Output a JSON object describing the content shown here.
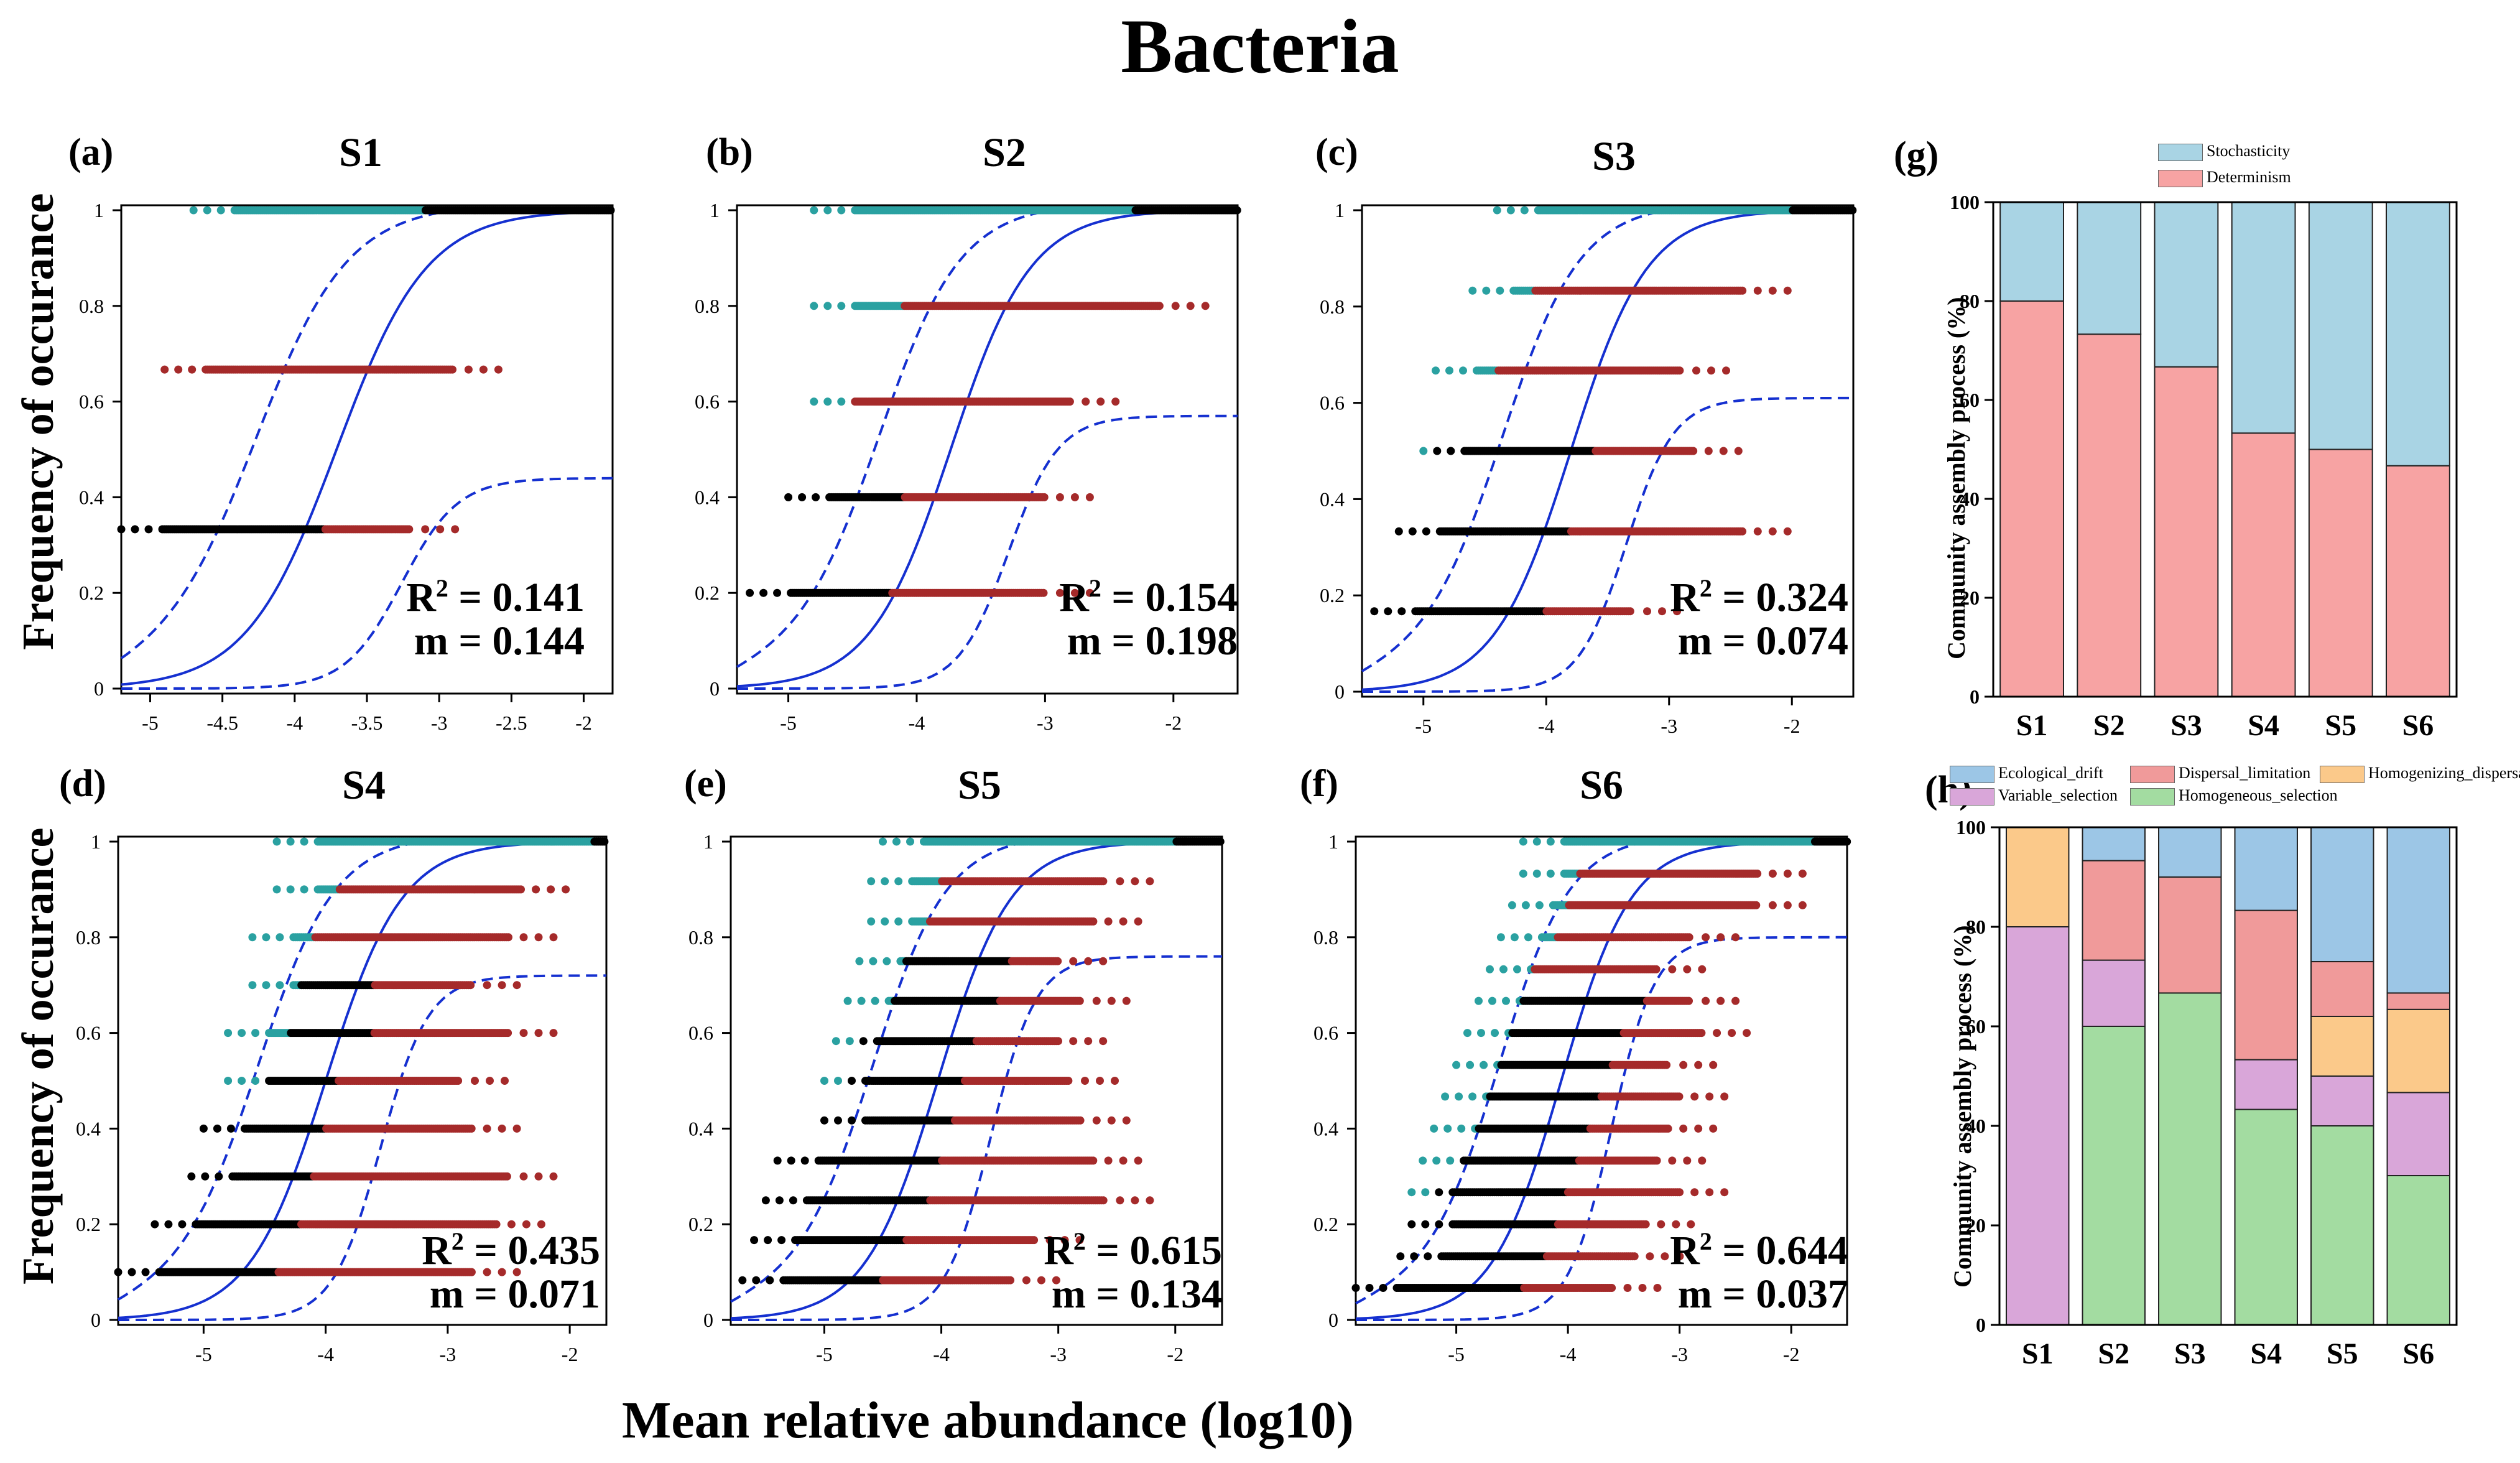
{
  "figure": {
    "title": "Bacteria",
    "shared_ylabel": "Frequency of occurance",
    "shared_xlabel": "Mean relative abundance (log10)"
  },
  "colors": {
    "above": "#2aa1a1",
    "neutral": "#000000",
    "below": "#a52a2a",
    "fit": "#1530d0"
  },
  "chart_data": [
    {
      "type": "scatter",
      "panel": "(a)",
      "title": "S1",
      "xlim": [
        -5.2,
        -1.8
      ],
      "ylim": [
        0,
        1
      ],
      "xticks": [
        -5,
        -4.5,
        -4,
        -3.5,
        -3,
        -2.5,
        -2
      ],
      "xticklabels": [
        "-5",
        "-4.5",
        "-4",
        "-3.5",
        "-3",
        "-2.5",
        "-2"
      ],
      "yticks": [
        0,
        0.2,
        0.4,
        0.6,
        0.8,
        1
      ],
      "yticklabels": [
        "0",
        "0.2",
        "0.4",
        "0.6",
        "0.8",
        "1"
      ],
      "r2_label": "R",
      "r2_text": " = 0.141",
      "m_text": "m = 0.144",
      "R2": 0.141,
      "m": 0.144,
      "dashed_lower_max": 0.44,
      "rows": [
        {
          "y": 0.333,
          "start": -5.2,
          "end": -3.2,
          "t1": -5.2,
          "t2": -3.8
        },
        {
          "y": 0.667,
          "start": -4.9,
          "end": -2.9,
          "t1": -4.9,
          "t2": -4.9
        },
        {
          "y": 1,
          "start": -4.7,
          "end": -1.8,
          "t1": -4.1,
          "t2": -4.1
        }
      ]
    },
    {
      "type": "scatter",
      "panel": "(b)",
      "title": "S2",
      "xlim": [
        -5.4,
        -1.5
      ],
      "ylim": [
        0,
        1
      ],
      "xticks": [
        -5,
        -4,
        -3,
        -2
      ],
      "xticklabels": [
        "-5",
        "-4",
        "-3",
        "-2"
      ],
      "yticks": [
        0,
        0.2,
        0.4,
        0.6,
        0.8,
        1
      ],
      "yticklabels": [
        "0",
        "0.2",
        "0.4",
        "0.6",
        "0.8",
        "1"
      ],
      "r2_label": "R",
      "r2_text": " = 0.154",
      "m_text": "m = 0.198",
      "R2": 0.154,
      "m": 0.198,
      "dashed_lower_max": 0.57,
      "rows": [
        {
          "y": 0.2,
          "start": -5.3,
          "end": -3.0,
          "t1": -5.3,
          "t2": -4.2
        },
        {
          "y": 0.4,
          "start": -5.0,
          "end": -3.0,
          "t1": -5.0,
          "t2": -4.1
        },
        {
          "y": 0.6,
          "start": -4.8,
          "end": -2.8,
          "t1": -4.5,
          "t2": -4.5
        },
        {
          "y": 0.8,
          "start": -4.8,
          "end": -2.1,
          "t1": -4.1,
          "t2": -4.1
        },
        {
          "y": 1,
          "start": -4.8,
          "end": -1.5,
          "t1": -3.3,
          "t2": -3.3
        }
      ]
    },
    {
      "type": "scatter",
      "panel": "(c)",
      "title": "S3",
      "xlim": [
        -5.5,
        -1.5
      ],
      "ylim": [
        0,
        1
      ],
      "xticks": [
        -5,
        -4,
        -3,
        -2
      ],
      "xticklabels": [
        "-5",
        "-4",
        "-3",
        "-2"
      ],
      "yticks": [
        0,
        0.2,
        0.4,
        0.6,
        0.8,
        1
      ],
      "yticklabels": [
        "0",
        "0.2",
        "0.4",
        "0.6",
        "0.8",
        "1"
      ],
      "r2_label": "R",
      "r2_text": " = 0.324",
      "m_text": "m = 0.074",
      "R2": 0.324,
      "m": 0.074,
      "dashed_lower_max": 0.61,
      "rows": [
        {
          "y": 0.167,
          "start": -5.4,
          "end": -3.3,
          "t1": -5.4,
          "t2": -4.0
        },
        {
          "y": 0.333,
          "start": -5.2,
          "end": -2.4,
          "t1": -5.2,
          "t2": -3.8
        },
        {
          "y": 0.5,
          "start": -5.0,
          "end": -2.8,
          "t1": -4.9,
          "t2": -3.6
        },
        {
          "y": 0.667,
          "start": -4.9,
          "end": -2.9,
          "t1": -4.4,
          "t2": -4.4
        },
        {
          "y": 0.833,
          "start": -4.6,
          "end": -2.4,
          "t1": -4.1,
          "t2": -4.1
        },
        {
          "y": 1,
          "start": -4.4,
          "end": -1.5,
          "t1": -3.0,
          "t2": -3.0
        }
      ]
    },
    {
      "type": "scatter",
      "panel": "(d)",
      "title": "S4",
      "xlim": [
        -5.7,
        -1.7
      ],
      "ylim": [
        0,
        1
      ],
      "xticks": [
        -5,
        -4,
        -3,
        -2
      ],
      "xticklabels": [
        "-5",
        "-4",
        "-3",
        "-2"
      ],
      "yticks": [
        0,
        0.2,
        0.4,
        0.6,
        0.8,
        1
      ],
      "yticklabels": [
        "0",
        "0.2",
        "0.4",
        "0.6",
        "0.8",
        "1"
      ],
      "r2_label": "R",
      "r2_text": " = 0.435",
      "m_text": "m = 0.071",
      "R2": 0.435,
      "m": 0.071,
      "dashed_lower_max": 0.72,
      "rows": [
        {
          "y": 0.1,
          "start": -5.7,
          "end": -2.8,
          "t1": -5.7,
          "t2": -4.4
        },
        {
          "y": 0.2,
          "start": -5.4,
          "end": -2.6,
          "t1": -5.4,
          "t2": -4.2
        },
        {
          "y": 0.3,
          "start": -5.1,
          "end": -2.5,
          "t1": -5.1,
          "t2": -4.1
        },
        {
          "y": 0.4,
          "start": -5.0,
          "end": -2.8,
          "t1": -5.0,
          "t2": -4.0
        },
        {
          "y": 0.5,
          "start": -4.8,
          "end": -2.9,
          "t1": -4.5,
          "t2": -3.9
        },
        {
          "y": 0.6,
          "start": -4.8,
          "end": -2.5,
          "t1": -4.3,
          "t2": -3.6
        },
        {
          "y": 0.7,
          "start": -4.6,
          "end": -2.8,
          "t1": -4.2,
          "t2": -3.6
        },
        {
          "y": 0.8,
          "start": -4.6,
          "end": -2.5,
          "t1": -4.1,
          "t2": -4.1
        },
        {
          "y": 0.9,
          "start": -4.4,
          "end": -2.4,
          "t1": -3.9,
          "t2": -3.9
        },
        {
          "y": 1,
          "start": -4.4,
          "end": -1.7,
          "t1": -2.8,
          "t2": -2.8
        }
      ]
    },
    {
      "type": "scatter",
      "panel": "(e)",
      "title": "S5",
      "xlim": [
        -5.8,
        -1.6
      ],
      "ylim": [
        0,
        1
      ],
      "xticks": [
        -5,
        -4,
        -3,
        -2
      ],
      "xticklabels": [
        "-5",
        "-4",
        "-3",
        "-2"
      ],
      "yticks": [
        0,
        0.2,
        0.4,
        0.6,
        0.8,
        1
      ],
      "yticklabels": [
        "0",
        "0.2",
        "0.4",
        "0.6",
        "0.8",
        "1"
      ],
      "r2_label": "R",
      "r2_text": " = 0.615",
      "m_text": "m = 0.134",
      "R2": 0.615,
      "m": 0.134,
      "dashed_lower_max": 0.76,
      "rows": [
        {
          "y": 0.083,
          "start": -5.7,
          "end": -3.4,
          "t1": -5.7,
          "t2": -4.5
        },
        {
          "y": 0.167,
          "start": -5.6,
          "end": -3.2,
          "t1": -5.6,
          "t2": -4.3
        },
        {
          "y": 0.25,
          "start": -5.5,
          "end": -2.6,
          "t1": -5.5,
          "t2": -4.1
        },
        {
          "y": 0.333,
          "start": -5.4,
          "end": -2.7,
          "t1": -5.4,
          "t2": -4.0
        },
        {
          "y": 0.417,
          "start": -5.0,
          "end": -2.8,
          "t1": -5.0,
          "t2": -3.9
        },
        {
          "y": 0.5,
          "start": -5.0,
          "end": -2.9,
          "t1": -4.8,
          "t2": -3.8
        },
        {
          "y": 0.583,
          "start": -4.9,
          "end": -3.0,
          "t1": -4.7,
          "t2": -3.7
        },
        {
          "y": 0.667,
          "start": -4.8,
          "end": -2.8,
          "t1": -4.4,
          "t2": -3.5
        },
        {
          "y": 0.75,
          "start": -4.7,
          "end": -3.0,
          "t1": -4.3,
          "t2": -3.4
        },
        {
          "y": 0.833,
          "start": -4.6,
          "end": -2.7,
          "t1": -4.1,
          "t2": -4.1
        },
        {
          "y": 0.917,
          "start": -4.6,
          "end": -2.6,
          "t1": -4.0,
          "t2": -4.0
        },
        {
          "y": 1,
          "start": -4.5,
          "end": -1.6,
          "t1": -3.0,
          "t2": -3.0
        }
      ]
    },
    {
      "type": "scatter",
      "panel": "(f)",
      "title": "S6",
      "xlim": [
        -5.9,
        -1.5
      ],
      "ylim": [
        0,
        1
      ],
      "xticks": [
        -5,
        -4,
        -3,
        -2
      ],
      "xticklabels": [
        "-5",
        "-4",
        "-3",
        "-2"
      ],
      "yticks": [
        0,
        0.2,
        0.4,
        0.6,
        0.8,
        1
      ],
      "yticklabels": [
        "0",
        "0.2",
        "0.4",
        "0.6",
        "0.8",
        "1"
      ],
      "r2_label": "R",
      "r2_text": " = 0.644",
      "m_text": "m = 0.037",
      "R2": 0.644,
      "m": 0.037,
      "dashed_lower_max": 0.8,
      "rows": [
        {
          "y": 0.067,
          "start": -5.9,
          "end": -3.6,
          "t1": -5.9,
          "t2": -4.4
        },
        {
          "y": 0.133,
          "start": -5.5,
          "end": -3.4,
          "t1": -5.5,
          "t2": -4.2
        },
        {
          "y": 0.2,
          "start": -5.4,
          "end": -3.3,
          "t1": -5.4,
          "t2": -4.1
        },
        {
          "y": 0.267,
          "start": -5.4,
          "end": -3.0,
          "t1": -5.2,
          "t2": -4.0
        },
        {
          "y": 0.333,
          "start": -5.3,
          "end": -3.2,
          "t1": -5.0,
          "t2": -3.9
        },
        {
          "y": 0.4,
          "start": -5.2,
          "end": -3.1,
          "t1": -4.8,
          "t2": -3.8
        },
        {
          "y": 0.467,
          "start": -5.1,
          "end": -3.0,
          "t1": -4.7,
          "t2": -3.7
        },
        {
          "y": 0.533,
          "start": -5.0,
          "end": -3.1,
          "t1": -4.6,
          "t2": -3.6
        },
        {
          "y": 0.6,
          "start": -4.9,
          "end": -2.8,
          "t1": -4.5,
          "t2": -3.5
        },
        {
          "y": 0.667,
          "start": -4.8,
          "end": -2.9,
          "t1": -4.4,
          "t2": -3.3
        },
        {
          "y": 0.733,
          "start": -4.7,
          "end": -3.2,
          "t1": -4.3,
          "t2": -4.3
        },
        {
          "y": 0.8,
          "start": -4.6,
          "end": -2.9,
          "t1": -4.1,
          "t2": -4.1
        },
        {
          "y": 0.867,
          "start": -4.5,
          "end": -2.3,
          "t1": -4.0,
          "t2": -4.0
        },
        {
          "y": 0.933,
          "start": -4.4,
          "end": -2.3,
          "t1": -3.9,
          "t2": -3.9
        },
        {
          "y": 1,
          "start": -4.4,
          "end": -1.5,
          "t1": -2.8,
          "t2": -2.8
        }
      ]
    },
    {
      "type": "bar",
      "stacked": true,
      "panel": "(g)",
      "categories": [
        "S1",
        "S2",
        "S3",
        "S4",
        "S5",
        "S6"
      ],
      "ylabel": "Community assembly process (%)",
      "ylim": [
        0,
        100
      ],
      "yticks": [
        0,
        20,
        40,
        60,
        80,
        100
      ],
      "yticklabels": [
        "0",
        "20",
        "40",
        "60",
        "80",
        "100"
      ],
      "legend_position": "top-center",
      "series": [
        {
          "name": "Determinism",
          "color": "#f7a3a3",
          "values": [
            80,
            73.3,
            66.7,
            53.3,
            50,
            46.7
          ]
        },
        {
          "name": "Stochasticity",
          "color": "#a9d4e4",
          "values": [
            20,
            26.7,
            33.3,
            46.7,
            50,
            53.3
          ]
        }
      ],
      "legend": [
        {
          "name": "Stochasticity",
          "color": "#a9d4e4"
        },
        {
          "name": "Determinism",
          "color": "#f7a3a3"
        }
      ]
    },
    {
      "type": "bar",
      "stacked": true,
      "panel": "(h)",
      "categories": [
        "S1",
        "S2",
        "S3",
        "S4",
        "S5",
        "S6"
      ],
      "ylabel": "Community assembly process (%)",
      "ylim": [
        0,
        100
      ],
      "yticks": [
        0,
        20,
        40,
        60,
        80,
        100
      ],
      "yticklabels": [
        "0",
        "20",
        "40",
        "60",
        "80",
        "100"
      ],
      "legend_position": "top",
      "series": [
        {
          "name": "Homogeneous_selection",
          "color": "#a3dca1",
          "values": [
            0,
            60,
            66.7,
            43.3,
            40,
            30
          ]
        },
        {
          "name": "Variable_selection",
          "color": "#d9a6d9",
          "values": [
            80,
            13.3,
            0,
            10,
            10,
            16.7
          ]
        },
        {
          "name": "Homogenizing_dispersal",
          "color": "#fbc98a",
          "values": [
            20,
            0,
            0,
            0,
            12,
            16.7
          ]
        },
        {
          "name": "Dispersal_limitation",
          "color": "#f09a9a",
          "values": [
            0,
            20,
            23.3,
            30,
            11,
            3.3
          ]
        },
        {
          "name": "Ecological_drift",
          "color": "#9cc6e6",
          "values": [
            0,
            6.7,
            10,
            16.7,
            27,
            33.3
          ]
        }
      ],
      "legend": [
        {
          "name": "Ecological_drift",
          "color": "#9cc6e6"
        },
        {
          "name": "Dispersal_limitation",
          "color": "#f09a9a"
        },
        {
          "name": "Homogenizing_dispersal",
          "color": "#fbc98a"
        },
        {
          "name": "Variable_selection",
          "color": "#d9a6d9"
        },
        {
          "name": "Homogeneous_selection",
          "color": "#a3dca1"
        }
      ]
    }
  ]
}
